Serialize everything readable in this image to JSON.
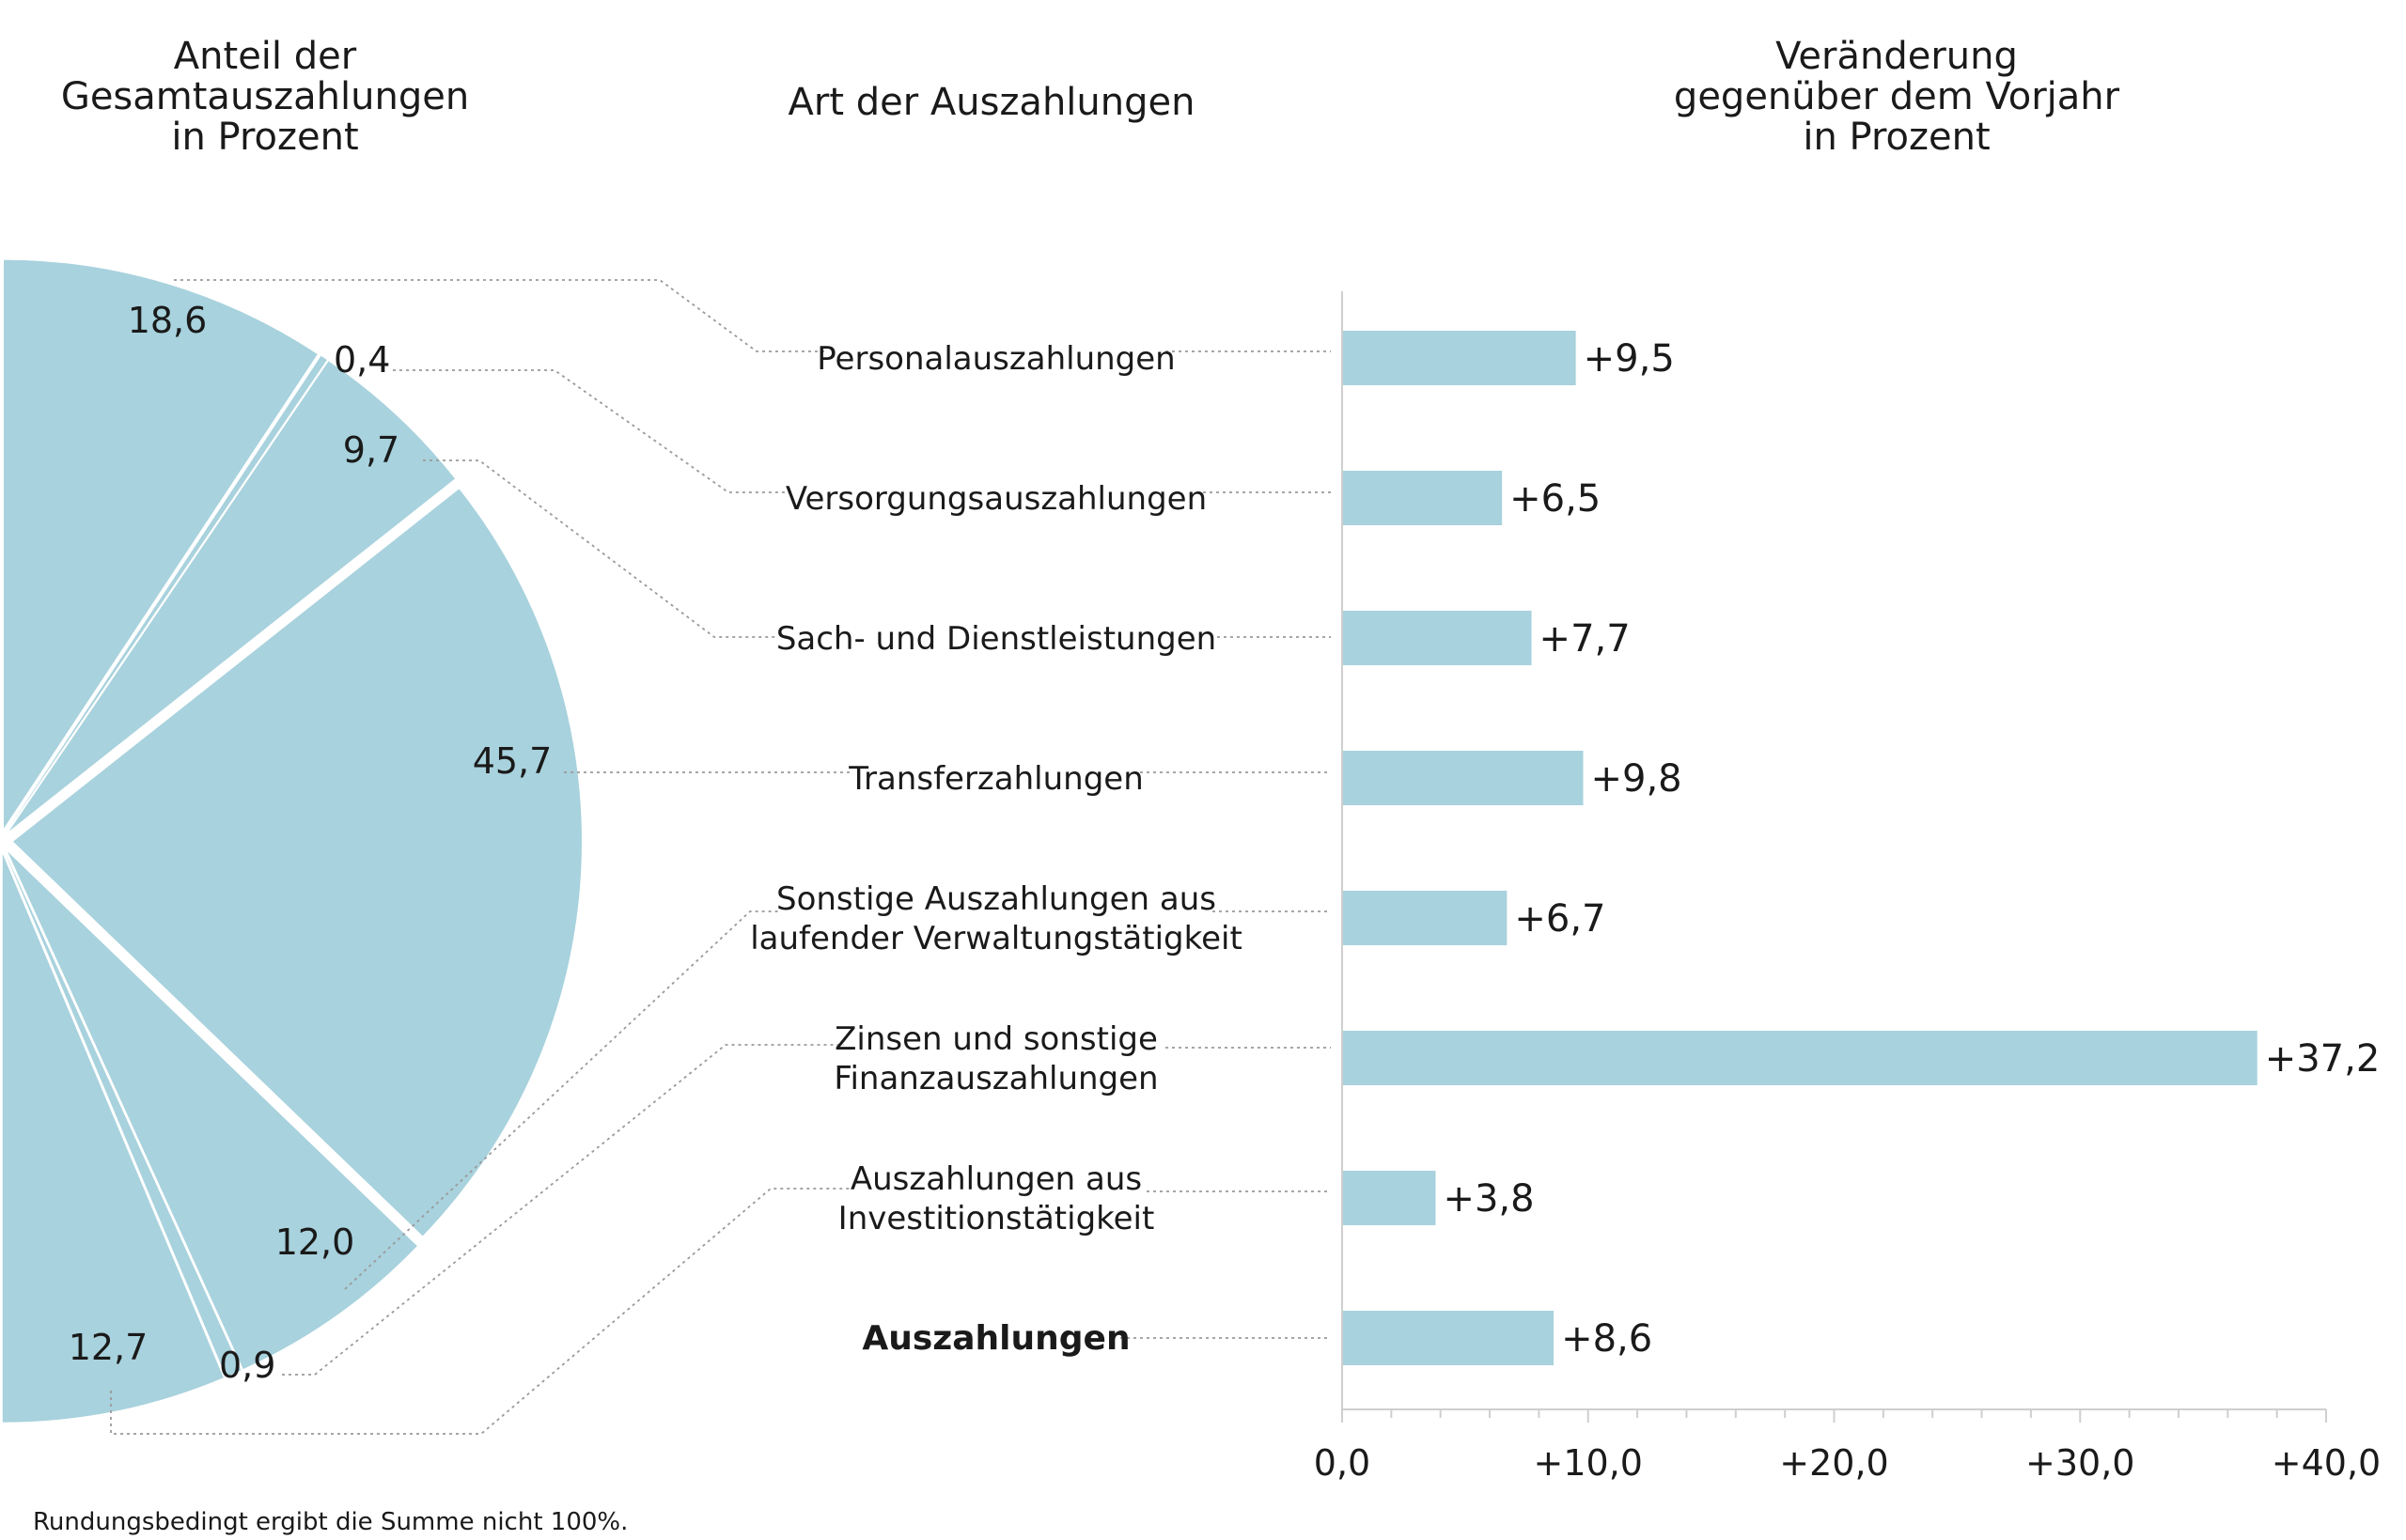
{
  "headers": {
    "left": [
      "Anteil der",
      "Gesamtauszahlungen",
      "in Prozent"
    ],
    "middle": [
      "Art der Auszahlungen"
    ],
    "right": [
      "Veränderung",
      "gegenüber dem Vorjahr",
      "in Prozent"
    ]
  },
  "footnote": "Rundungsbedingt ergibt die Summe nicht 100%.",
  "colors": {
    "fill": "#a8d2dd",
    "axis": "#cfcfcf",
    "leader": "#9a9a9a"
  },
  "chart_data": [
    {
      "type": "pie",
      "slices": [
        {
          "category": "Personalauszahlungen",
          "label": "18,6",
          "value": 18.6
        },
        {
          "category": "Versorgungsauszahlungen",
          "label": "0,4",
          "value": 0.4
        },
        {
          "category": "Sach- und Dienstleistungen",
          "label": "9,7",
          "value": 9.7
        },
        {
          "category": "Transferzahlungen",
          "label": "45,7",
          "value": 45.7
        },
        {
          "category": "Sonstige Auszahlungen aus laufender Verwaltungstätigkeit",
          "label": "12,0",
          "value": 12.0
        },
        {
          "category": "Zinsen und sonstige Finanzauszahlungen",
          "label": "0,9",
          "value": 0.9
        },
        {
          "category": "Auszahlungen aus Investitionstätigkeit",
          "label": "12,7",
          "value": 12.7
        }
      ]
    },
    {
      "type": "bar",
      "orientation": "horizontal",
      "categories": [
        [
          "Personalauszahlungen"
        ],
        [
          "Versorgungsauszahlungen"
        ],
        [
          "Sach- und Dienstleistungen"
        ],
        [
          "Transferzahlungen"
        ],
        [
          "Sonstige Auszahlungen aus",
          "laufender Verwaltungstätigkeit"
        ],
        [
          "Zinsen und sonstige",
          "Finanzauszahlungen"
        ],
        [
          "Auszahlungen aus",
          "Investitionstätigkeit"
        ],
        [
          "Auszahlungen"
        ]
      ],
      "bold_category": "Auszahlungen",
      "values": [
        9.5,
        6.5,
        7.7,
        9.8,
        6.7,
        37.2,
        3.8,
        8.6
      ],
      "value_labels": [
        "+9,5",
        "+6,5",
        "+7,7",
        "+9,8",
        "+6,7",
        "+37,2",
        "+3,8",
        "+8,6"
      ],
      "xlim": [
        0,
        40
      ],
      "ticks": [
        0,
        10,
        20,
        30,
        40
      ],
      "tick_labels": [
        "0,0",
        "+10,0",
        "+20,0",
        "+30,0",
        "+40,0"
      ],
      "minor_tick_step": 2
    }
  ]
}
